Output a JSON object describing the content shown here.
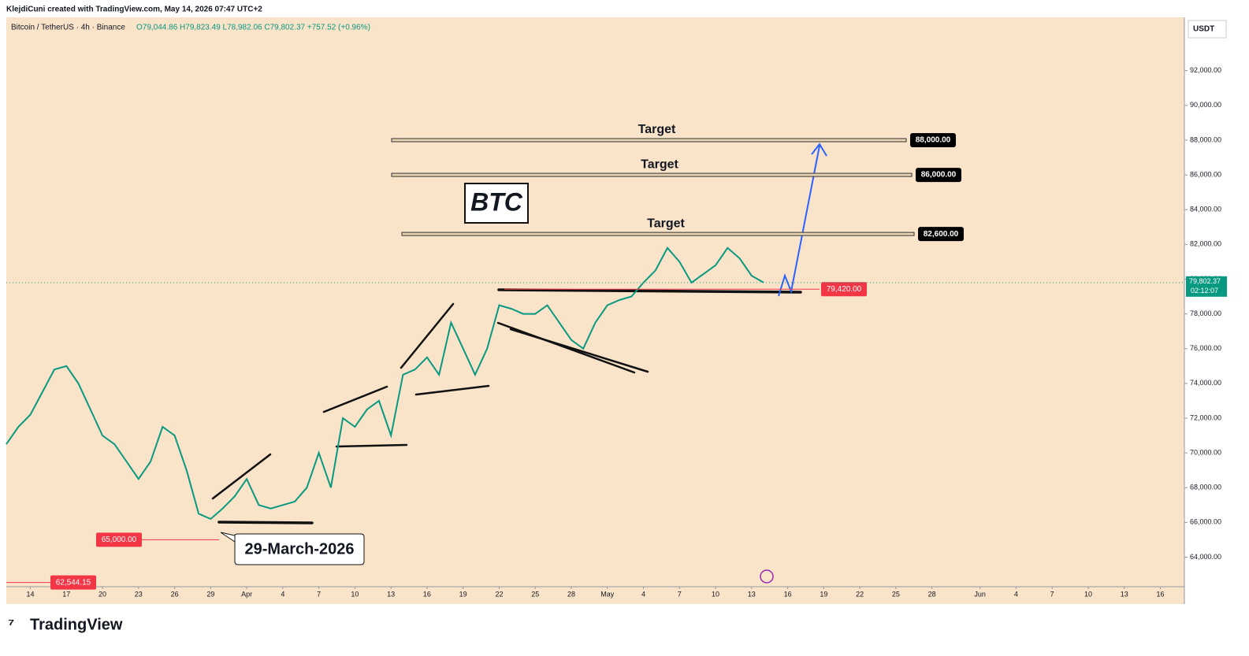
{
  "header": {
    "author_line": "KlejdiCuni created with TradingView.com, May 14, 2026 07:47 UTC+2",
    "symbol": "Bitcoin / TetherUS · 4h · Binance",
    "ohlc": "O79,044.86 H79,823.49 L78,982.06 C79,802.37 +757.52 (+0.96%)"
  },
  "chart_data": {
    "type": "line",
    "currency": "USDT",
    "x": [
      "2026-03-12",
      "2026-03-13",
      "2026-03-14",
      "2026-03-15",
      "2026-03-16",
      "2026-03-17",
      "2026-03-18",
      "2026-03-19",
      "2026-03-20",
      "2026-03-21",
      "2026-03-22",
      "2026-03-23",
      "2026-03-24",
      "2026-03-25",
      "2026-03-26",
      "2026-03-27",
      "2026-03-28",
      "2026-03-29",
      "2026-03-30",
      "2026-03-31",
      "2026-04-01",
      "2026-04-02",
      "2026-04-03",
      "2026-04-04",
      "2026-04-05",
      "2026-04-06",
      "2026-04-07",
      "2026-04-08",
      "2026-04-09",
      "2026-04-10",
      "2026-04-11",
      "2026-04-12",
      "2026-04-13",
      "2026-04-14",
      "2026-04-15",
      "2026-04-16",
      "2026-04-17",
      "2026-04-18",
      "2026-04-19",
      "2026-04-20",
      "2026-04-21",
      "2026-04-22",
      "2026-04-23",
      "2026-04-24",
      "2026-04-25",
      "2026-04-26",
      "2026-04-27",
      "2026-04-28",
      "2026-04-29",
      "2026-04-30",
      "2026-05-01",
      "2026-05-02",
      "2026-05-03",
      "2026-05-04",
      "2026-05-05",
      "2026-05-06",
      "2026-05-07",
      "2026-05-08",
      "2026-05-09",
      "2026-05-10",
      "2026-05-11",
      "2026-05-12",
      "2026-05-13",
      "2026-05-14"
    ],
    "series": [
      {
        "name": "BTCUSDT",
        "color": "#089981",
        "values": [
          70500,
          71500,
          72200,
          73500,
          74800,
          75000,
          74000,
          72500,
          71000,
          70500,
          69500,
          68500,
          69500,
          71500,
          71000,
          69000,
          66500,
          66200,
          66800,
          67500,
          68500,
          67000,
          66800,
          67000,
          67200,
          68000,
          70000,
          68000,
          72000,
          71500,
          72500,
          73000,
          71000,
          74500,
          74800,
          75500,
          74500,
          77500,
          76000,
          74500,
          76000,
          78500,
          78300,
          78000,
          78000,
          78500,
          77500,
          76500,
          76000,
          77500,
          78500,
          78800,
          79000,
          79800,
          80500,
          81800,
          81000,
          79800,
          80300,
          80800,
          81800,
          81200,
          80200,
          79802.37
        ]
      }
    ],
    "xlim": [
      "2026-03-12",
      "2026-06-18"
    ],
    "xticks": [
      {
        "value": "2026-03-14",
        "label": "14"
      },
      {
        "value": "2026-03-17",
        "label": "17"
      },
      {
        "value": "2026-03-20",
        "label": "20"
      },
      {
        "value": "2026-03-23",
        "label": "23"
      },
      {
        "value": "2026-03-26",
        "label": "26"
      },
      {
        "value": "2026-03-29",
        "label": "29"
      },
      {
        "value": "2026-04-01",
        "label": "Apr"
      },
      {
        "value": "2026-04-04",
        "label": "4"
      },
      {
        "value": "2026-04-07",
        "label": "7"
      },
      {
        "value": "2026-04-10",
        "label": "10"
      },
      {
        "value": "2026-04-13",
        "label": "13"
      },
      {
        "value": "2026-04-16",
        "label": "16"
      },
      {
        "value": "2026-04-19",
        "label": "19"
      },
      {
        "value": "2026-04-22",
        "label": "22"
      },
      {
        "value": "2026-04-25",
        "label": "25"
      },
      {
        "value": "2026-04-28",
        "label": "28"
      },
      {
        "value": "2026-05-01",
        "label": "May"
      },
      {
        "value": "2026-05-04",
        "label": "4"
      },
      {
        "value": "2026-05-07",
        "label": "7"
      },
      {
        "value": "2026-05-10",
        "label": "10"
      },
      {
        "value": "2026-05-13",
        "label": "13"
      },
      {
        "value": "2026-05-16",
        "label": "16"
      },
      {
        "value": "2026-05-19",
        "label": "19"
      },
      {
        "value": "2026-05-22",
        "label": "22"
      },
      {
        "value": "2026-05-25",
        "label": "25"
      },
      {
        "value": "2026-05-28",
        "label": "28"
      },
      {
        "value": "2026-06-01",
        "label": "Jun"
      },
      {
        "value": "2026-06-04",
        "label": "4"
      },
      {
        "value": "2026-06-07",
        "label": "7"
      },
      {
        "value": "2026-06-10",
        "label": "10"
      },
      {
        "value": "2026-06-13",
        "label": "13"
      },
      {
        "value": "2026-06-16",
        "label": "16"
      }
    ],
    "ylim": [
      62300,
      93800
    ],
    "yticks": [
      {
        "value": 64000,
        "label": "64,000.00"
      },
      {
        "value": 66000,
        "label": "66,000.00"
      },
      {
        "value": 68000,
        "label": "68,000.00"
      },
      {
        "value": 70000,
        "label": "70,000.00"
      },
      {
        "value": 72000,
        "label": "72,000.00"
      },
      {
        "value": 74000,
        "label": "74,000.00"
      },
      {
        "value": 76000,
        "label": "76,000.00"
      },
      {
        "value": 78000,
        "label": "78,000.00"
      },
      {
        "value": 80000,
        "label": "80,000.00"
      },
      {
        "value": 82000,
        "label": "82,000.00"
      },
      {
        "value": 84000,
        "label": "84,000.00"
      },
      {
        "value": 86000,
        "label": "86,000.00"
      },
      {
        "value": 88000,
        "label": "88,000.00"
      },
      {
        "value": 90000,
        "label": "90,000.00"
      },
      {
        "value": 92000,
        "label": "92,000.00"
      }
    ],
    "targets": {
      "names": [
        "Target",
        "Target",
        "Target"
      ],
      "values": [
        88000,
        86000,
        82600
      ],
      "value_labels": [
        "88,000.00",
        "86,000.00",
        "82,600.00"
      ]
    },
    "price_lines": {
      "values": [
        79420,
        65000,
        62544.15
      ],
      "value_labels": [
        "79,420.00",
        "65,000.00",
        "62,544.15"
      ],
      "color": "#f23645"
    },
    "last_price": {
      "value": 79802.37,
      "value_label": "79,802.37",
      "countdown": "02:12:07",
      "color": "#089981"
    },
    "annotations": {
      "symbol_box": "BTC",
      "date_callout": "29-March-2026"
    }
  },
  "footer": {
    "logo": "TradingView"
  }
}
